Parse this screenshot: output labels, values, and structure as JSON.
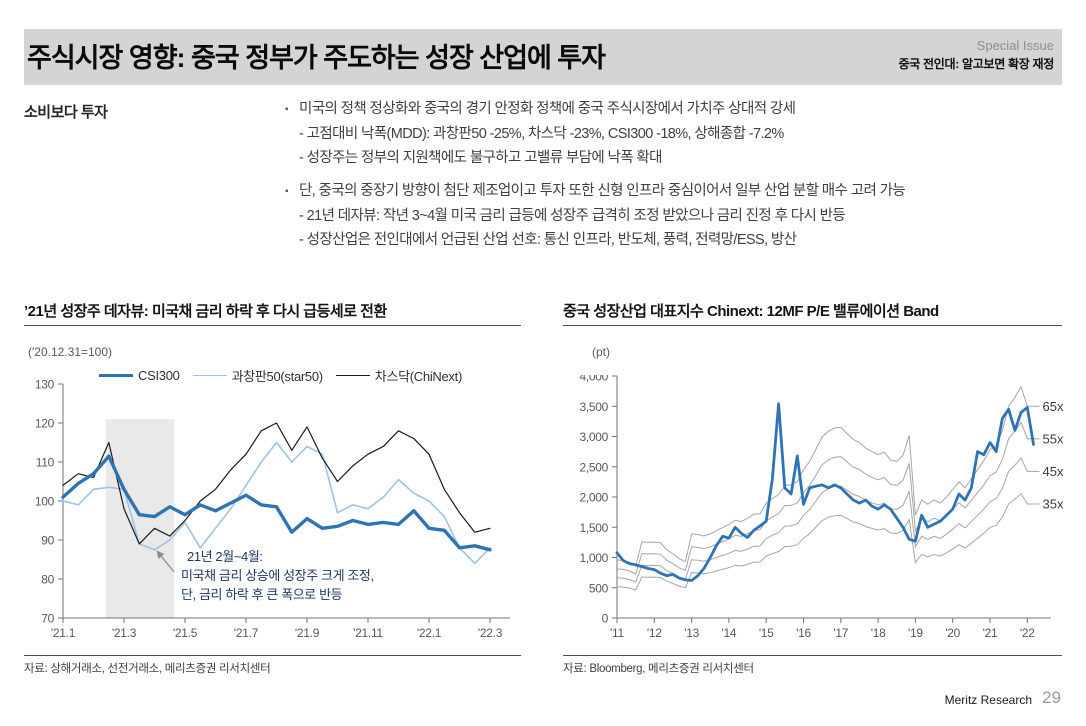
{
  "header": {
    "title": "주식시장 영향: 중국 정부가 주도하는 성장 산업에 투자",
    "issue_label": "Special Issue",
    "issue_subtitle": "중국 전인대: 알고보면 확장 재정"
  },
  "lead": {
    "label": "소비보다 투자",
    "bullet_marker": "▪",
    "bullets": [
      {
        "text": "미국의 정책 정상화와 중국의 경기 안정화 정책에 중국 주식시장에서 가치주 상대적 강세",
        "sub": [
          "- 고점대비 낙폭(MDD): 과창판50 -25%, 차스닥 -23%, CSI300 -18%, 상해종합 -7.2%",
          "- 성장주는 정부의 지원책에도 불구하고 고밸류 부담에 낙폭 확대"
        ]
      },
      {
        "text": "단, 중국의 중장기 방향이 첨단 제조업이고 투자 또한 신형 인프라 중심이어서 일부 산업 분할 매수 고려 가능",
        "sub": [
          "- 21년 데자뷰: 작년 3~4월 미국 금리 급등에 성장주 급격히 조정 받았으나 금리 진정 후 다시 반등",
          "- 성장산업은 전인대에서 언급된 산업 선호: 통신 인프라, 반도체, 풍력, 전력망/ESS, 방산"
        ]
      }
    ]
  },
  "chart_data": [
    {
      "type": "line",
      "title": "’21년 성장주 데자뷰: 미국채 금리 하락 후 다시 급등세로 전환",
      "unit_label": "('20.12.31=100)",
      "source": "자료: 상해거래소, 선전거래소, 메리츠증권 리서치센터",
      "ylim": [
        70,
        130
      ],
      "y_ticks": [
        70,
        80,
        90,
        100,
        110,
        120,
        130
      ],
      "x_tick_labels": [
        "'21.1",
        "'21.3",
        "'21.5",
        "'21.7",
        "'21.9",
        "'21.11",
        "'22.1",
        "'22.3"
      ],
      "x_tick_months": [
        0,
        2,
        4,
        6,
        8,
        10,
        12,
        14
      ],
      "x_step_months": 0.5,
      "legend_position": "top",
      "grid": false,
      "series": [
        {
          "id": "csi300-line",
          "name": "CSI300",
          "color": "#2E74B5",
          "stroke_width": 3.4,
          "values": [
            101,
            104.5,
            107,
            111.5,
            103,
            96.5,
            96,
            98.5,
            96.5,
            99,
            97.5,
            99.5,
            101.5,
            99,
            98.5,
            92,
            95.5,
            93,
            93.5,
            95,
            94,
            94.5,
            94,
            97.5,
            93,
            92.5,
            88,
            88.5,
            87.5
          ]
        },
        {
          "id": "star50-line",
          "name": "과창판50(star50)",
          "color": "#9DC3E6",
          "stroke_width": 1.6,
          "values": [
            100,
            99,
            103,
            103.5,
            103,
            89,
            87.5,
            90,
            94.5,
            88,
            93,
            98,
            104,
            110,
            115,
            110,
            114,
            112,
            97,
            99,
            98,
            101,
            105.5,
            102,
            100,
            96,
            88,
            84,
            88
          ]
        },
        {
          "id": "chinext-line",
          "name": "차스닥(ChiNext)",
          "color": "#1a1a1a",
          "stroke_width": 1.2,
          "values": [
            104,
            107,
            106,
            115,
            98,
            89,
            93,
            91,
            95,
            100,
            103,
            108,
            112,
            118,
            120,
            113,
            119,
            111,
            105,
            109,
            112,
            114,
            118,
            116,
            112,
            103,
            97,
            92,
            93
          ]
        }
      ],
      "shaded_region": {
        "from_month": 1.4,
        "to_month": 3.65,
        "top_value": 121,
        "color": "#e9e9e9"
      },
      "annotation": {
        "lines": [
          "21년 2월~4월:",
          "미국채 금리 상승에 성장주 크게 조정,",
          "단, 금리 하락 후 큰 폭으로 반등"
        ],
        "color": "#1F3864"
      }
    },
    {
      "type": "line",
      "title": "중국 성장산업 대표지수 Chinext: 12MF P/E 밸류에이션 Band",
      "unit_label": "(pt)",
      "source": "자료: Bloomberg, 메리츠증권 리서치센터",
      "ylim": [
        0,
        4000
      ],
      "y_tick_step": 500,
      "x_tick_labels": [
        "'11",
        "'12",
        "'13",
        "'14",
        "'15",
        "'16",
        "'17",
        "'18",
        "'19",
        "'20",
        "'21",
        "'22"
      ],
      "points_per_year": 6,
      "start_year": 2011,
      "grid": false,
      "price_series": {
        "id": "chinext-price-line",
        "name": "Chinext",
        "color": "#2E74B5",
        "stroke_width": 2.8,
        "values": [
          1080,
          950,
          900,
          880,
          850,
          820,
          800,
          740,
          700,
          720,
          660,
          630,
          620,
          700,
          820,
          1000,
          1200,
          1350,
          1320,
          1500,
          1400,
          1330,
          1450,
          1520,
          1600,
          2300,
          3540,
          2150,
          2050,
          2680,
          1880,
          2150,
          2180,
          2200,
          2150,
          2200,
          2150,
          2050,
          1950,
          1900,
          1950,
          1850,
          1800,
          1870,
          1800,
          1650,
          1500,
          1300,
          1270,
          1700,
          1500,
          1550,
          1600,
          1700,
          1800,
          2050,
          1950,
          2150,
          2750,
          2700,
          2900,
          2750,
          3300,
          3450,
          3100,
          3400,
          3480,
          2870
        ]
      },
      "pe_bands": {
        "labels": [
          "65x",
          "55x",
          "45x",
          "35x"
        ],
        "multiples": [
          65,
          55,
          45,
          35
        ],
        "color": "#a6a6a6",
        "stroke_width": 1,
        "base_65x_values": [
          960,
          950,
          920,
          860,
          1260,
          1250,
          1255,
          1245,
          1130,
          1060,
          980,
          930,
          1390,
          1380,
          1355,
          1390,
          1445,
          1495,
          1545,
          1615,
          1595,
          1645,
          1715,
          1720,
          1900,
          1975,
          2040,
          2195,
          2200,
          2250,
          2450,
          2590,
          2790,
          2990,
          3090,
          3140,
          3150,
          3050,
          2950,
          2900,
          2810,
          2750,
          2700,
          2740,
          2610,
          2590,
          2690,
          3020,
          1700,
          1950,
          1880,
          1950,
          1900,
          2000,
          2120,
          2250,
          2150,
          2300,
          2450,
          2600,
          2780,
          2850,
          3100,
          3500,
          3650,
          3820,
          3500,
          3500
        ]
      }
    }
  ],
  "footer": {
    "brand": "Meritz Research",
    "page": "29"
  }
}
